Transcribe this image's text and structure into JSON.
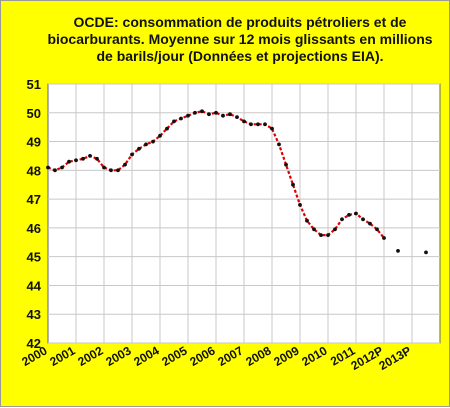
{
  "chart_data": {
    "type": "line",
    "title": "OCDE: consommation de produits pétroliers et de biocarburants. Moyenne sur 12 mois glissants en millions de barils/jour (Données  et projections EIA).",
    "categories": [
      "2000",
      "2001",
      "2002",
      "2003",
      "2004",
      "2005",
      "2006",
      "2007",
      "2008",
      "2009",
      "2010",
      "2011",
      "2012P",
      "2013P"
    ],
    "ylim": [
      42,
      51
    ],
    "y_ticks": [
      "42",
      "43",
      "44",
      "45",
      "46",
      "47",
      "48",
      "49",
      "50",
      "51"
    ],
    "grid": true,
    "colors": {
      "background": "#ffff00",
      "plot_area": "#ffffff",
      "grid": "#c8c8c8",
      "points": "#111111",
      "line": "#e00000"
    },
    "series": [
      {
        "x": [
          2000.0,
          2000.25,
          2000.5,
          2000.75,
          2001.0,
          2001.25,
          2001.5,
          2001.75,
          2002.0,
          2002.25,
          2002.5,
          2002.75,
          2003.0,
          2003.25,
          2003.5,
          2003.75,
          2004.0,
          2004.25,
          2004.5,
          2004.75,
          2005.0,
          2005.25,
          2005.5,
          2005.75,
          2006.0,
          2006.25,
          2006.5,
          2006.75,
          2007.0,
          2007.25,
          2007.5,
          2007.75,
          2008.0,
          2008.25,
          2008.5,
          2008.75,
          2009.0,
          2009.25,
          2009.5,
          2009.75,
          2010.0,
          2010.25,
          2010.5,
          2010.75,
          2011.0,
          2011.25,
          2011.5,
          2011.75,
          2012.0
        ],
        "values": [
          48.1,
          48.0,
          48.1,
          48.3,
          48.35,
          48.4,
          48.5,
          48.4,
          48.1,
          48.0,
          48.0,
          48.2,
          48.55,
          48.75,
          48.9,
          49.0,
          49.2,
          49.45,
          49.7,
          49.8,
          49.9,
          50.0,
          50.05,
          49.95,
          50.0,
          49.9,
          49.95,
          49.85,
          49.7,
          49.6,
          49.6,
          49.6,
          49.45,
          48.9,
          48.2,
          47.5,
          46.8,
          46.25,
          45.95,
          45.75,
          45.75,
          45.95,
          46.3,
          46.45,
          46.5,
          46.3,
          46.15,
          45.95,
          45.65
        ]
      },
      {
        "x": [
          2012.5,
          2013.5
        ],
        "values": [
          45.2,
          45.15
        ]
      }
    ]
  }
}
